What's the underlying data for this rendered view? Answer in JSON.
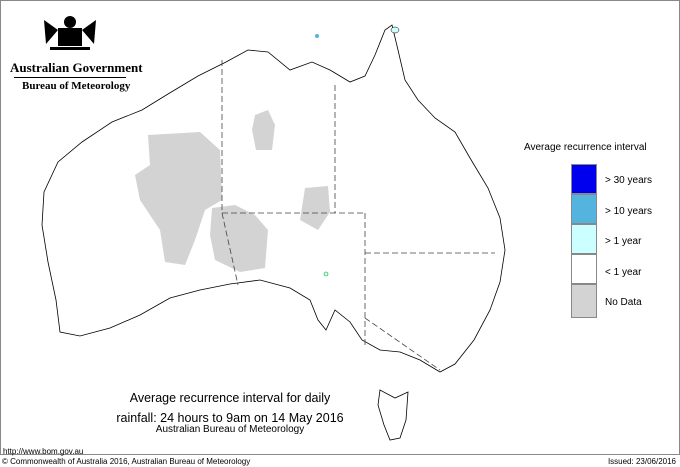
{
  "header": {
    "org": "Australian Government",
    "dept": "Bureau of Meteorology"
  },
  "legend": {
    "title": "Average recurrence interval",
    "items": [
      {
        "label": "> 30 years",
        "color": "#0000ee"
      },
      {
        "label": "> 10 years",
        "color": "#55b4dd"
      },
      {
        "label": "> 1 year",
        "color": "#ccffff"
      },
      {
        "label": "< 1 year",
        "color": "#ffffff"
      },
      {
        "label": "No Data",
        "color": "#d3d3d3"
      }
    ]
  },
  "caption": {
    "line1": "Average recurrence interval for daily",
    "line2": "rainfall: 24 hours to 9am on 14 May 2016",
    "line3": "Australian Bureau of Meteorology"
  },
  "footer": {
    "url": "http://www.bom.gov.au",
    "copyright": "© Commonwealth of Australia 2016, Australian Bureau of Meteorology",
    "issued": "Issued: 23/06/2016"
  }
}
